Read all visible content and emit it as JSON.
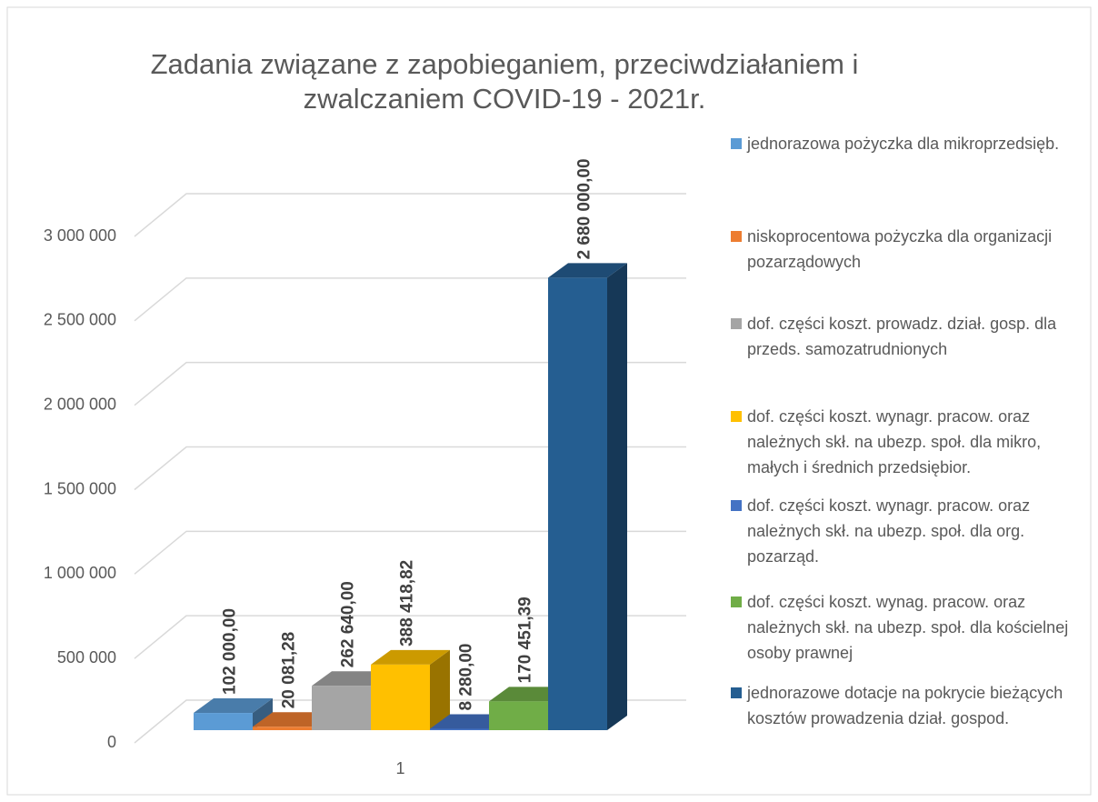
{
  "chart_data": {
    "type": "bar3d",
    "title": "Zadania związane z zapobieganiem, przeciwdziałaniem i zwalczaniem COVID-19 - 2021r.",
    "categories": [
      "1"
    ],
    "series": [
      {
        "name": "jednorazowa pożyczka dla mikroprzedsięb.",
        "color": "#5b9bd5",
        "values": [
          102000
        ],
        "value_labels": [
          "102 000,00"
        ]
      },
      {
        "name": "niskoprocentowa pożyczka dla organizacji pozarządowych",
        "color": "#ed7d31",
        "values": [
          20081.28
        ],
        "value_labels": [
          "20 081,28"
        ]
      },
      {
        "name": "dof. części koszt. prowadz. dział. gosp. dla przeds. samozatrudnionych",
        "color": "#a5a5a5",
        "values": [
          262640
        ],
        "value_labels": [
          "262 640,00"
        ]
      },
      {
        "name": "dof. części koszt. wynagr. pracow. oraz należnych skł. na ubezp. społ. dla mikro, małych i średnich przedsiębior.",
        "color": "#ffc000",
        "values": [
          388418.82
        ],
        "value_labels": [
          "388 418,82"
        ]
      },
      {
        "name": "dof. części koszt. wynagr. pracow. oraz należnych skł. na ubezp. społ. dla org. pozarząd.",
        "color": "#4472c4",
        "values": [
          8280
        ],
        "value_labels": [
          "8 280,00"
        ]
      },
      {
        "name": "dof. części koszt. wynag. pracow. oraz należnych skł. na ubezp. społ. dla kościelnej osoby prawnej",
        "color": "#70ad47",
        "values": [
          170451.39
        ],
        "value_labels": [
          "170 451,39"
        ]
      },
      {
        "name": "jednorazowe dotacje na pokrycie bieżących kosztów prowadzenia dział. gospod.",
        "color": "#255e91",
        "values": [
          2680000
        ],
        "value_labels": [
          "2 680 000,00"
        ]
      }
    ],
    "ylim": [
      0,
      3000000
    ],
    "yticks": [
      0,
      {
        "value": 500000,
        "label": "500 000"
      },
      {
        "value": 1000000,
        "label": "1 000 000"
      },
      {
        "value": 1500000,
        "label": "1 500 000"
      },
      {
        "value": 2000000,
        "label": "2 000 000"
      },
      {
        "value": 2500000,
        "label": "2 500 000"
      },
      {
        "value": 3000000,
        "label": "3 000 000"
      }
    ],
    "grid": true,
    "legend": "right"
  }
}
